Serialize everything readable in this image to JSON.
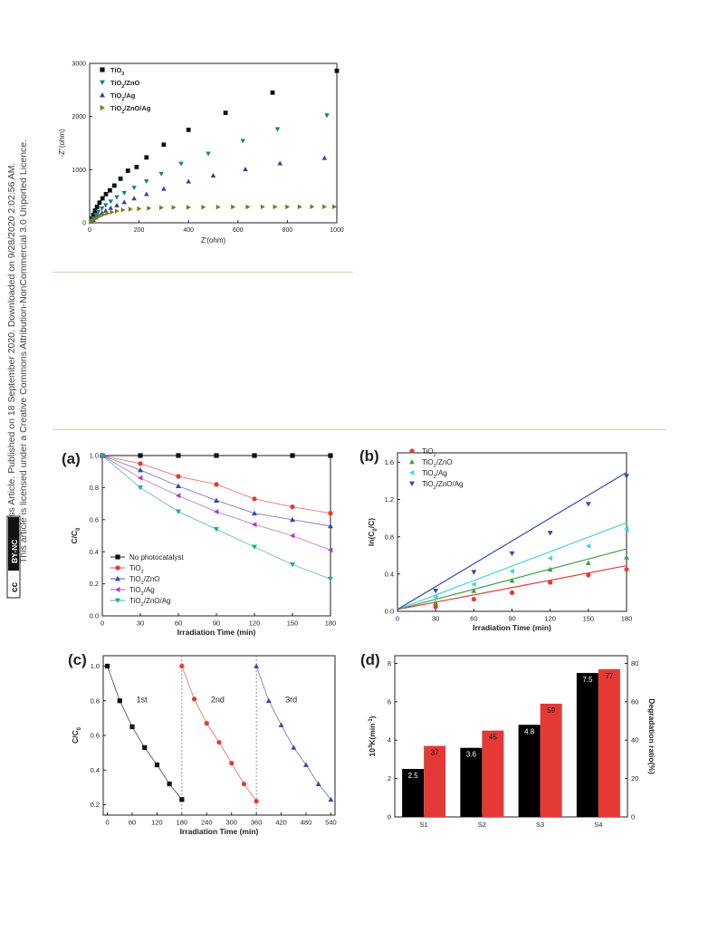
{
  "license": {
    "line1": "Open Access Article. Published on 18 September 2020. Downloaded on 9/28/2020 2:02:56 AM.",
    "line2": "This article is licensed under a Creative Commons Attribution-NonCommercial 3.0 Unported Licence.",
    "badge_cc": "cc",
    "badge_text": "BY-NC"
  },
  "chart_data": [
    {
      "id": "nyquist",
      "type": "scatter",
      "xlabel": "Z'(ohm)",
      "ylabel": "-Z''(ohm)",
      "xlim": [
        0,
        1000
      ],
      "ylim": [
        0,
        3000
      ],
      "xticks": [
        "0",
        "200",
        "400",
        "600",
        "800",
        "1000"
      ],
      "yticks": [
        "0",
        "1000",
        "2000",
        "3000"
      ],
      "legend_position": "top-left",
      "series": [
        {
          "name": "TiO2",
          "label_main": "TiO",
          "label_sub": "2",
          "label_rest": "",
          "marker": "square",
          "color": "#111111",
          "x": [
            8,
            15,
            22,
            30,
            40,
            52,
            66,
            82,
            100,
            125,
            155,
            190,
            230,
            300,
            400,
            550,
            740,
            1000
          ],
          "y": [
            80,
            150,
            230,
            300,
            380,
            460,
            540,
            610,
            700,
            830,
            980,
            1050,
            1230,
            1470,
            1750,
            2070,
            2450,
            2860
          ]
        },
        {
          "name": "TiO2/ZnO",
          "label_main": "TiO",
          "label_sub": "2",
          "label_rest": "/ZnO",
          "marker": "triangle-down",
          "color": "#1a7f8a",
          "x": [
            8,
            15,
            25,
            35,
            50,
            65,
            85,
            110,
            140,
            180,
            230,
            290,
            370,
            480,
            620,
            760,
            960
          ],
          "y": [
            40,
            80,
            150,
            210,
            270,
            330,
            400,
            480,
            560,
            660,
            780,
            920,
            1110,
            1300,
            1540,
            1760,
            2020
          ]
        },
        {
          "name": "TiO2/Ag",
          "label_main": "TiO",
          "label_sub": "2",
          "label_rest": "/Ag",
          "marker": "triangle-up",
          "color": "#2f3fa8",
          "x": [
            8,
            15,
            25,
            35,
            50,
            65,
            85,
            110,
            140,
            180,
            230,
            300,
            400,
            500,
            630,
            770,
            950
          ],
          "y": [
            25,
            55,
            100,
            140,
            190,
            230,
            280,
            330,
            390,
            460,
            540,
            640,
            780,
            890,
            1010,
            1120,
            1220
          ]
        },
        {
          "name": "TiO2/ZnO/Ag",
          "label_main": "TiO",
          "label_sub": "2",
          "label_rest": "/ZnO/Ag",
          "marker": "triangle-right",
          "color": "#7a7a1a",
          "x": [
            5,
            12,
            20,
            30,
            42,
            56,
            72,
            90,
            110,
            135,
            165,
            200,
            240,
            290,
            340,
            400,
            460,
            520,
            580,
            640,
            700,
            750,
            800,
            850,
            900,
            950,
            990
          ],
          "y": [
            15,
            40,
            70,
            100,
            130,
            155,
            180,
            200,
            220,
            240,
            255,
            265,
            275,
            285,
            290,
            292,
            295,
            297,
            298,
            299,
            300,
            300,
            301,
            301,
            302,
            302,
            302
          ]
        }
      ]
    },
    {
      "id": "a",
      "panel_label": "(a)",
      "type": "line",
      "xlabel": "Irradiation Time (min)",
      "ylabel_main": "C/C",
      "ylabel_sub": "0",
      "xlim": [
        0,
        180
      ],
      "ylim": [
        0,
        1.0
      ],
      "xticks": [
        "0",
        "30",
        "60",
        "90",
        "120",
        "150",
        "180"
      ],
      "yticks": [
        "0.0",
        "0.2",
        "0.4",
        "0.6",
        "0.8",
        "1.0"
      ],
      "legend_position": "bottom-left",
      "x": [
        0,
        30,
        60,
        90,
        120,
        150,
        180
      ],
      "series": [
        {
          "name": "No photocatalyst",
          "label_main": "No photocatalyst",
          "label_sub": "",
          "label_rest": "",
          "marker": "square",
          "color": "#111111",
          "values": [
            1.0,
            1.0,
            1.0,
            1.0,
            1.0,
            1.0,
            1.0
          ]
        },
        {
          "name": "TiO2",
          "label_main": "TiO",
          "label_sub": "2",
          "label_rest": "",
          "marker": "circle",
          "color": "#e53935",
          "values": [
            1.0,
            0.95,
            0.87,
            0.82,
            0.73,
            0.68,
            0.64
          ]
        },
        {
          "name": "TiO2/ZnO",
          "label_main": "TiO",
          "label_sub": "2",
          "label_rest": "/ZnO",
          "marker": "triangle-up",
          "color": "#3949ab",
          "values": [
            1.0,
            0.91,
            0.81,
            0.72,
            0.64,
            0.6,
            0.56
          ]
        },
        {
          "name": "TiO2/Ag",
          "label_main": "TiO",
          "label_sub": "2",
          "label_rest": "/Ag",
          "marker": "triangle-left",
          "color": "#b040c0",
          "values": [
            1.0,
            0.86,
            0.75,
            0.65,
            0.57,
            0.5,
            0.41
          ]
        },
        {
          "name": "TiO2/ZnO/Ag",
          "label_main": "TiO",
          "label_sub": "2",
          "label_rest": "/ZnO/Ag",
          "marker": "triangle-down",
          "color": "#26a69a",
          "values": [
            1.0,
            0.8,
            0.65,
            0.54,
            0.43,
            0.32,
            0.23
          ]
        }
      ]
    },
    {
      "id": "b",
      "panel_label": "(b)",
      "type": "scatter",
      "xlabel": "Irradiation Time (min)",
      "ylabel_main": "ln(C",
      "ylabel_sub": "0",
      "ylabel_rest": "/C)",
      "xlim": [
        0,
        180
      ],
      "ylim": [
        0,
        1.7
      ],
      "xticks": [
        "0",
        "30",
        "60",
        "90",
        "120",
        "150",
        "180"
      ],
      "yticks": [
        "0.0",
        "0.4",
        "0.8",
        "1.2",
        "1.6"
      ],
      "legend_position": "top-left",
      "x": [
        30,
        60,
        90,
        120,
        150,
        180
      ],
      "series": [
        {
          "name": "TiO2",
          "label_main": "TiO",
          "label_sub": "2",
          "label_rest": "",
          "marker": "circle",
          "color": "#e53935",
          "values": [
            0.05,
            0.13,
            0.2,
            0.31,
            0.39,
            0.45
          ],
          "fit_end": 0.49
        },
        {
          "name": "TiO2/ZnO",
          "label_main": "TiO",
          "label_sub": "2",
          "label_rest": "/ZnO",
          "marker": "triangle-up",
          "color": "#43a047",
          "values": [
            0.09,
            0.22,
            0.33,
            0.45,
            0.52,
            0.58
          ],
          "fit_end": 0.67
        },
        {
          "name": "TiO2/Ag",
          "label_main": "TiO",
          "label_sub": "2",
          "label_rest": "/Ag",
          "marker": "triangle-left",
          "color": "#4dd0e1",
          "values": [
            0.15,
            0.29,
            0.43,
            0.57,
            0.7,
            0.88
          ],
          "fit_end": 0.95
        },
        {
          "name": "TiO2/ZnO/Ag",
          "label_main": "TiO",
          "label_sub": "2",
          "label_rest": "/ZnO/Ag",
          "marker": "triangle-down",
          "color": "#3949ab",
          "values": [
            0.22,
            0.42,
            0.62,
            0.84,
            1.15,
            1.45
          ],
          "fit_end": 1.49
        }
      ]
    },
    {
      "id": "c",
      "panel_label": "(c)",
      "type": "line",
      "xlabel": "Irradiation Time (min)",
      "ylabel_main": "C/C",
      "ylabel_sub": "0",
      "xlim": [
        -10,
        550
      ],
      "ylim": [
        0.14,
        1.06
      ],
      "xticks": [
        "0",
        "60",
        "120",
        "180",
        "240",
        "300",
        "360",
        "420",
        "480",
        "540"
      ],
      "yticks": [
        "0.2",
        "0.4",
        "0.6",
        "0.8",
        "1.0"
      ],
      "cycle_dividers": [
        180,
        360
      ],
      "annotations": [
        "1st",
        "2nd",
        "3rd"
      ],
      "series": [
        {
          "name": "1st",
          "marker": "square",
          "color": "#111111",
          "x": [
            0,
            30,
            60,
            90,
            120,
            150,
            180
          ],
          "values": [
            1.0,
            0.8,
            0.65,
            0.53,
            0.43,
            0.32,
            0.23
          ]
        },
        {
          "name": "2nd",
          "marker": "circle",
          "color": "#e53935",
          "x": [
            180,
            210,
            240,
            270,
            300,
            330,
            360
          ],
          "values": [
            1.0,
            0.81,
            0.67,
            0.56,
            0.44,
            0.32,
            0.22
          ]
        },
        {
          "name": "3rd",
          "marker": "triangle-up",
          "color": "#3949ab",
          "x": [
            360,
            390,
            420,
            450,
            480,
            510,
            540
          ],
          "values": [
            1.0,
            0.8,
            0.66,
            0.53,
            0.43,
            0.32,
            0.23
          ]
        }
      ]
    },
    {
      "id": "d",
      "panel_label": "(d)",
      "type": "bar",
      "categories": [
        "S1",
        "S2",
        "S3",
        "S4"
      ],
      "ylabel_main": "10",
      "ylabel_sup": "3",
      "ylabel_rest": "K(min",
      "ylabel_sup2": "-1",
      "ylabel_end": ")",
      "y2label": "Degradation ratio(%)",
      "ylim": [
        0,
        8.4
      ],
      "y2lim": [
        0,
        84
      ],
      "yticks": [
        "0",
        "2",
        "4",
        "6",
        "8"
      ],
      "y2ticks": [
        "0",
        "20",
        "40",
        "60",
        "80"
      ],
      "series": [
        {
          "name": "10^3 K",
          "axis": "left",
          "color": "#000000",
          "label_color": "#ffffff",
          "values": [
            2.5,
            3.6,
            4.8,
            7.5
          ],
          "labels": [
            "2.5",
            "3.6",
            "4.8",
            "7.5"
          ]
        },
        {
          "name": "Degradation ratio",
          "axis": "right",
          "color": "#e53935",
          "label_color": "#111111",
          "values": [
            37,
            45,
            59,
            77
          ],
          "labels": [
            "37",
            "45",
            "59",
            "77"
          ]
        }
      ]
    }
  ]
}
